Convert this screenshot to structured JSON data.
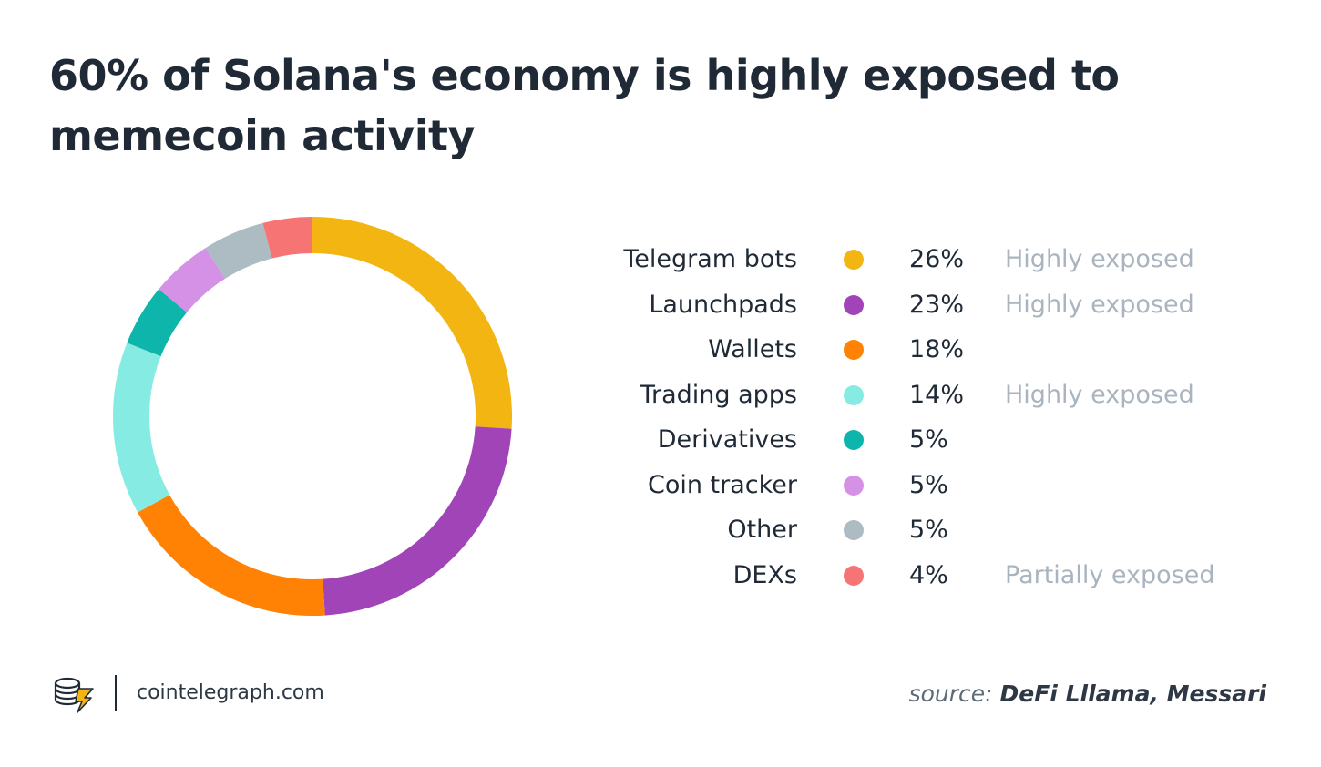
{
  "title": "60% of Solana's economy is highly exposed to memecoin activity",
  "chart_data": {
    "type": "pie",
    "style": "donut",
    "title": "60% of Solana's economy is highly exposed to memecoin activity",
    "categories": [
      "Telegram bots",
      "Launchpads",
      "Wallets",
      "Trading apps",
      "Derivatives",
      "Coin tracker",
      "Other",
      "DEXs"
    ],
    "values": [
      26,
      23,
      18,
      14,
      5,
      5,
      5,
      4
    ],
    "value_labels": [
      "26%",
      "23%",
      "18%",
      "14%",
      "5%",
      "5%",
      "5%",
      "4%"
    ],
    "exposure": [
      "Highly exposed",
      "Highly exposed",
      "",
      "Highly exposed",
      "",
      "",
      "",
      "Partially exposed"
    ],
    "colors": [
      "#f2b511",
      "#a044b8",
      "#ff8205",
      "#86ebe3",
      "#0db5aa",
      "#d491e6",
      "#adbbc3",
      "#f67474"
    ],
    "legend_position": "right"
  },
  "footer": {
    "site": "cointelegraph.com",
    "source_prefix": "source:",
    "source_names": "DeFi Lllama, Messari"
  },
  "icons": {
    "logo": "cointelegraph-logo-icon"
  }
}
